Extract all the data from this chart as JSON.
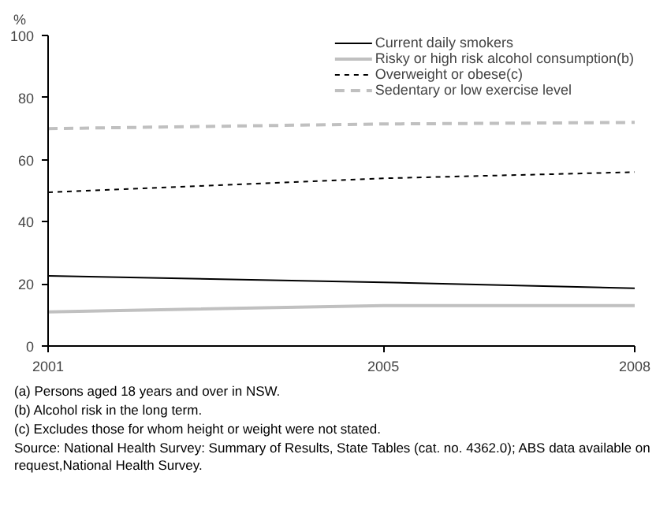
{
  "chart_data": {
    "type": "line",
    "ylabel": "%",
    "x": [
      2001,
      2005,
      2008
    ],
    "series": [
      {
        "name": "Current daily smokers",
        "color": "#000000",
        "line_style": "solid",
        "values": [
          22.6,
          20.5,
          18.6
        ]
      },
      {
        "name": "Risky or high risk alcohol consumption(b)",
        "color": "#c0c0c0",
        "line_style": "solid",
        "values": [
          11,
          13,
          13
        ]
      },
      {
        "name": "Overweight or obese(c)",
        "color": "#000000",
        "line_style": "dotted",
        "values": [
          49.5,
          54,
          56
        ]
      },
      {
        "name": "Sedentary or low exercise level",
        "color": "#c0c0c0",
        "line_style": "dashed",
        "values": [
          70,
          71.5,
          72
        ]
      }
    ],
    "xlim": [
      2001,
      2008
    ],
    "xticks": [
      2001,
      2005,
      2008
    ],
    "ylim": [
      0,
      100
    ],
    "yticks": [
      0,
      20,
      40,
      60,
      80,
      100
    ],
    "grid": false,
    "legend": "top right",
    "marker": "none",
    "annotations": [
      "(a) Persons aged 18 years and over in NSW.",
      "(b) Alcohol risk in the long term.",
      "(c) Excludes those for whom height or weight were not stated.",
      "Source: National Health Survey: Summary of Results, State Tables (cat. no. 4362.0); ABS data available on request,National Health Survey."
    ]
  }
}
